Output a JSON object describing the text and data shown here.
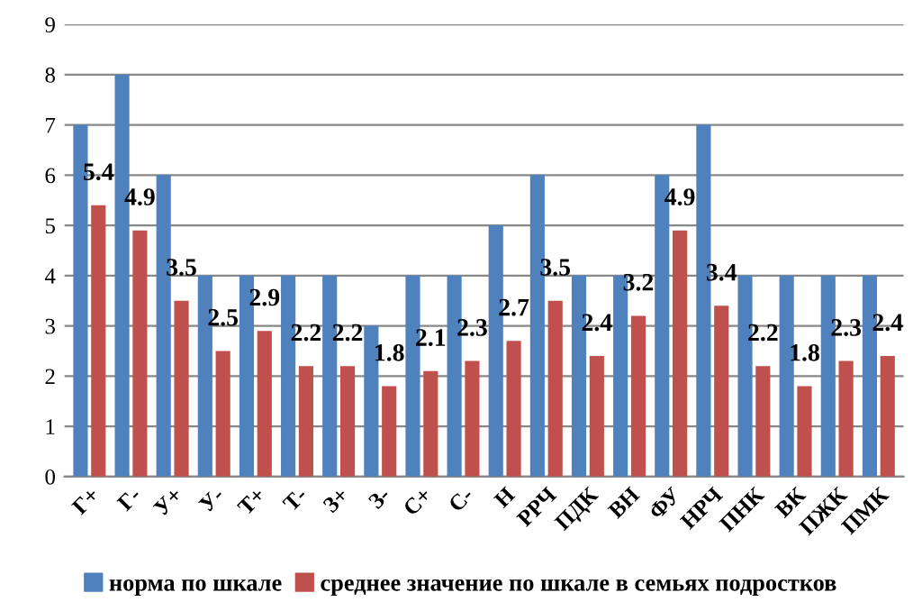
{
  "chart_data": {
    "type": "bar",
    "categories": [
      "Г+",
      "Г-",
      "У+",
      "У-",
      "Т+",
      "Т-",
      "З+",
      "З-",
      "С+",
      "С-",
      "Н",
      "РРЧ",
      "ПДК",
      "ВН",
      "ФУ",
      "НРЧ",
      "ПНК",
      "ВК",
      "ПЖК",
      "ПМК"
    ],
    "series": [
      {
        "name": "норма по шкале",
        "color": "#4f81bd",
        "values": [
          7,
          8,
          6,
          4,
          4,
          4,
          4,
          3,
          4,
          4,
          5,
          6,
          4,
          4,
          6,
          7,
          4,
          4,
          4,
          4
        ]
      },
      {
        "name": "среднее значение по шкале в семьях подростков",
        "color": "#c0504d",
        "values": [
          5.4,
          4.9,
          3.5,
          2.5,
          2.9,
          2.2,
          2.2,
          1.8,
          2.1,
          2.3,
          2.7,
          3.5,
          2.4,
          3.2,
          4.9,
          3.4,
          2.2,
          1.8,
          2.3,
          2.4
        ],
        "value_labels": [
          "5.4",
          "4.9",
          "3.5",
          "2.5",
          "2.9",
          "2.2",
          "2.2",
          "1.8",
          "2.1",
          "2.3",
          "2.7",
          "3.5",
          "2.4",
          "3.2",
          "4.9",
          "3.4",
          "2.2",
          "1.8",
          "2.3",
          "2.4"
        ]
      }
    ],
    "ylim": [
      0,
      9
    ],
    "yticks": [
      0,
      1,
      2,
      3,
      4,
      5,
      6,
      7,
      8,
      9
    ],
    "grid": "y",
    "legend": "bottom"
  }
}
